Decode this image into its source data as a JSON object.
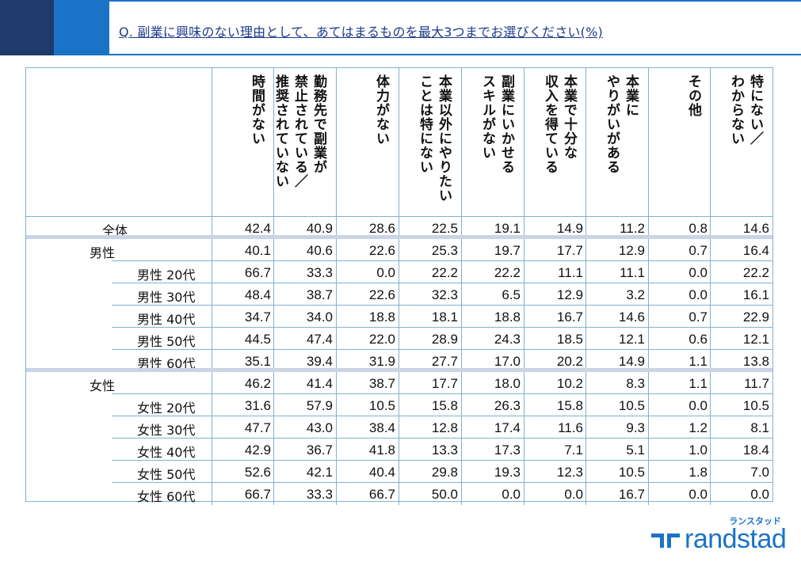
{
  "title": "Q. 副業に興味のない理由として、あてはまるものを最大3つまでお選びください(%)",
  "columns": [
    "時間がない",
    "勤務先で副業が\n禁止されている／\n推奨されていない",
    "体力がない",
    "本業以外にやりたい\nことは特にない",
    "副業にいかせる\nスキルがない",
    "本業で十分な\n収入を得ている",
    "本業に\nやりがいがある",
    "その他",
    "特にない／\nわからない"
  ],
  "rows": [
    {
      "label": "全体",
      "level": "main",
      "values": [
        "42.4",
        "40.9",
        "28.6",
        "22.5",
        "19.1",
        "14.9",
        "11.2",
        "0.8",
        "14.6"
      ]
    },
    {
      "label": "男性",
      "level": "group",
      "values": [
        "40.1",
        "40.6",
        "22.6",
        "25.3",
        "19.7",
        "17.7",
        "12.9",
        "0.7",
        "16.4"
      ]
    },
    {
      "label": "男性 20代",
      "level": "sub",
      "values": [
        "66.7",
        "33.3",
        "0.0",
        "22.2",
        "22.2",
        "11.1",
        "11.1",
        "0.0",
        "22.2"
      ]
    },
    {
      "label": "男性 30代",
      "level": "sub",
      "values": [
        "48.4",
        "38.7",
        "22.6",
        "32.3",
        "6.5",
        "12.9",
        "3.2",
        "0.0",
        "16.1"
      ]
    },
    {
      "label": "男性 40代",
      "level": "sub",
      "values": [
        "34.7",
        "34.0",
        "18.8",
        "18.1",
        "18.8",
        "16.7",
        "14.6",
        "0.7",
        "22.9"
      ]
    },
    {
      "label": "男性 50代",
      "level": "sub",
      "values": [
        "44.5",
        "47.4",
        "22.0",
        "28.9",
        "24.3",
        "18.5",
        "12.1",
        "0.6",
        "12.1"
      ]
    },
    {
      "label": "男性 60代",
      "level": "sub",
      "values": [
        "35.1",
        "39.4",
        "31.9",
        "27.7",
        "17.0",
        "20.2",
        "14.9",
        "1.1",
        "13.8"
      ]
    },
    {
      "label": "女性",
      "level": "group",
      "values": [
        "46.2",
        "41.4",
        "38.7",
        "17.7",
        "18.0",
        "10.2",
        "8.3",
        "1.1",
        "11.7"
      ]
    },
    {
      "label": "女性 20代",
      "level": "sub",
      "values": [
        "31.6",
        "57.9",
        "10.5",
        "15.8",
        "26.3",
        "15.8",
        "10.5",
        "0.0",
        "10.5"
      ]
    },
    {
      "label": "女性 30代",
      "level": "sub",
      "values": [
        "47.7",
        "43.0",
        "38.4",
        "12.8",
        "17.4",
        "11.6",
        "9.3",
        "1.2",
        "8.1"
      ]
    },
    {
      "label": "女性 40代",
      "level": "sub",
      "values": [
        "42.9",
        "36.7",
        "41.8",
        "13.3",
        "17.3",
        "7.1",
        "5.1",
        "1.0",
        "18.4"
      ]
    },
    {
      "label": "女性 50代",
      "level": "sub",
      "values": [
        "52.6",
        "42.1",
        "40.4",
        "29.8",
        "19.3",
        "12.3",
        "10.5",
        "1.8",
        "7.0"
      ]
    },
    {
      "label": "女性 60代",
      "level": "sub",
      "values": [
        "66.7",
        "33.3",
        "66.7",
        "50.0",
        "0.0",
        "0.0",
        "16.7",
        "0.0",
        "0.0"
      ]
    }
  ],
  "brand": {
    "kana": "ランスタッド",
    "name": "randstad",
    "color": "#1a73c7"
  }
}
